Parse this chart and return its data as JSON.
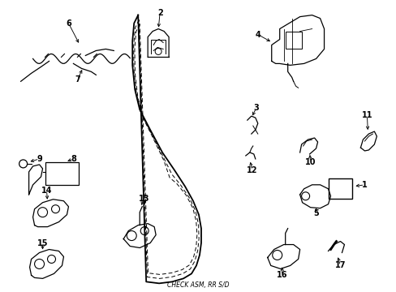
{
  "background_color": "#ffffff",
  "fig_width": 4.89,
  "fig_height": 3.6,
  "dpi": 100,
  "door_color": "#000000",
  "label_fontsize": 7.0,
  "arrow_lw": 0.7,
  "part_lw": 0.9
}
